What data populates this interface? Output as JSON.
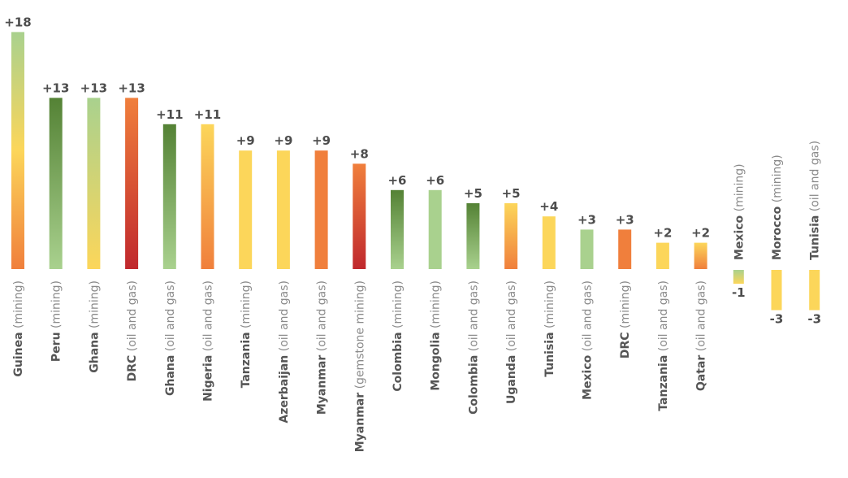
{
  "chart_data": {
    "type": "bar",
    "title": "",
    "xlabel": "",
    "ylabel": "",
    "ylim": [
      -3,
      18
    ],
    "grid": false,
    "legend": "none",
    "categories": [
      {
        "name": "Guinea",
        "sector": "(mining)"
      },
      {
        "name": "Peru",
        "sector": "(mining)"
      },
      {
        "name": "Ghana",
        "sector": "(mining)"
      },
      {
        "name": "DRC",
        "sector": "(oil and gas)"
      },
      {
        "name": "Ghana",
        "sector": "(oil and gas)"
      },
      {
        "name": "Nigeria",
        "sector": "(oil and gas)"
      },
      {
        "name": "Tanzania",
        "sector": "(mining)"
      },
      {
        "name": "Azerbaijan",
        "sector": "(oil and gas)"
      },
      {
        "name": "Myanmar",
        "sector": "(oil and gas)"
      },
      {
        "name": "Myanmar",
        "sector": "(gemstone mining)"
      },
      {
        "name": "Colombia",
        "sector": "(mining)"
      },
      {
        "name": "Mongolia",
        "sector": "(mining)"
      },
      {
        "name": "Colombia",
        "sector": "(oil and gas)"
      },
      {
        "name": "Uganda",
        "sector": "(oil and gas)"
      },
      {
        "name": "Tunisia",
        "sector": "(mining)"
      },
      {
        "name": "Mexico",
        "sector": "(oil and gas)"
      },
      {
        "name": "DRC",
        "sector": "(mining)"
      },
      {
        "name": "Tanzania",
        "sector": "(oil and gas)"
      },
      {
        "name": "Qatar",
        "sector": "(oil and gas)"
      },
      {
        "name": "Mexico",
        "sector": "(mining)"
      },
      {
        "name": "Morocco",
        "sector": "(mining)"
      },
      {
        "name": "Tunisia",
        "sector": "(oil and gas)"
      }
    ],
    "values": [
      18,
      13,
      13,
      13,
      11,
      11,
      9,
      9,
      9,
      8,
      6,
      6,
      5,
      5,
      4,
      3,
      3,
      2,
      2,
      -1,
      -3,
      -3
    ],
    "value_labels": [
      "+18",
      "+13",
      "+13",
      "+13",
      "+11",
      "+11",
      "+9",
      "+9",
      "+9",
      "+8",
      "+6",
      "+6",
      "+5",
      "+5",
      "+4",
      "+3",
      "+3",
      "+2",
      "+2",
      "-1",
      "-3",
      "-3"
    ],
    "bar_fills": [
      {
        "top": "#a9d18e",
        "bottom": "#f07f3c",
        "stops": [
          "#a9d18e",
          "#fcd65a",
          "#f07f3c"
        ]
      },
      {
        "top": "#548235",
        "bottom": "#a9d18e"
      },
      {
        "top": "#a9d18e",
        "bottom": "#fcd65a"
      },
      {
        "top": "#f07f3c",
        "bottom": "#c0282d"
      },
      {
        "top": "#548235",
        "bottom": "#a9d18e"
      },
      {
        "top": "#fcd65a",
        "bottom": "#f07f3c"
      },
      {
        "top": "#fcd65a",
        "bottom": "#fcd65a"
      },
      {
        "top": "#fcd65a",
        "bottom": "#fcd65a"
      },
      {
        "top": "#f07f3c",
        "bottom": "#f07f3c"
      },
      {
        "top": "#f07f3c",
        "bottom": "#c0282d"
      },
      {
        "top": "#548235",
        "bottom": "#a9d18e"
      },
      {
        "top": "#a9d18e",
        "bottom": "#a9d18e"
      },
      {
        "top": "#548235",
        "bottom": "#a9d18e"
      },
      {
        "top": "#fcd65a",
        "bottom": "#f07f3c"
      },
      {
        "top": "#fcd65a",
        "bottom": "#fcd65a"
      },
      {
        "top": "#a9d18e",
        "bottom": "#a9d18e"
      },
      {
        "top": "#f07f3c",
        "bottom": "#f07f3c"
      },
      {
        "top": "#fcd65a",
        "bottom": "#fcd65a"
      },
      {
        "top": "#fcd65a",
        "bottom": "#f07f3c"
      },
      {
        "top": "#a9d18e",
        "bottom": "#fcd65a"
      },
      {
        "top": "#fcd65a",
        "bottom": "#fcd65a"
      },
      {
        "top": "#fcd65a",
        "bottom": "#fcd65a"
      }
    ]
  }
}
